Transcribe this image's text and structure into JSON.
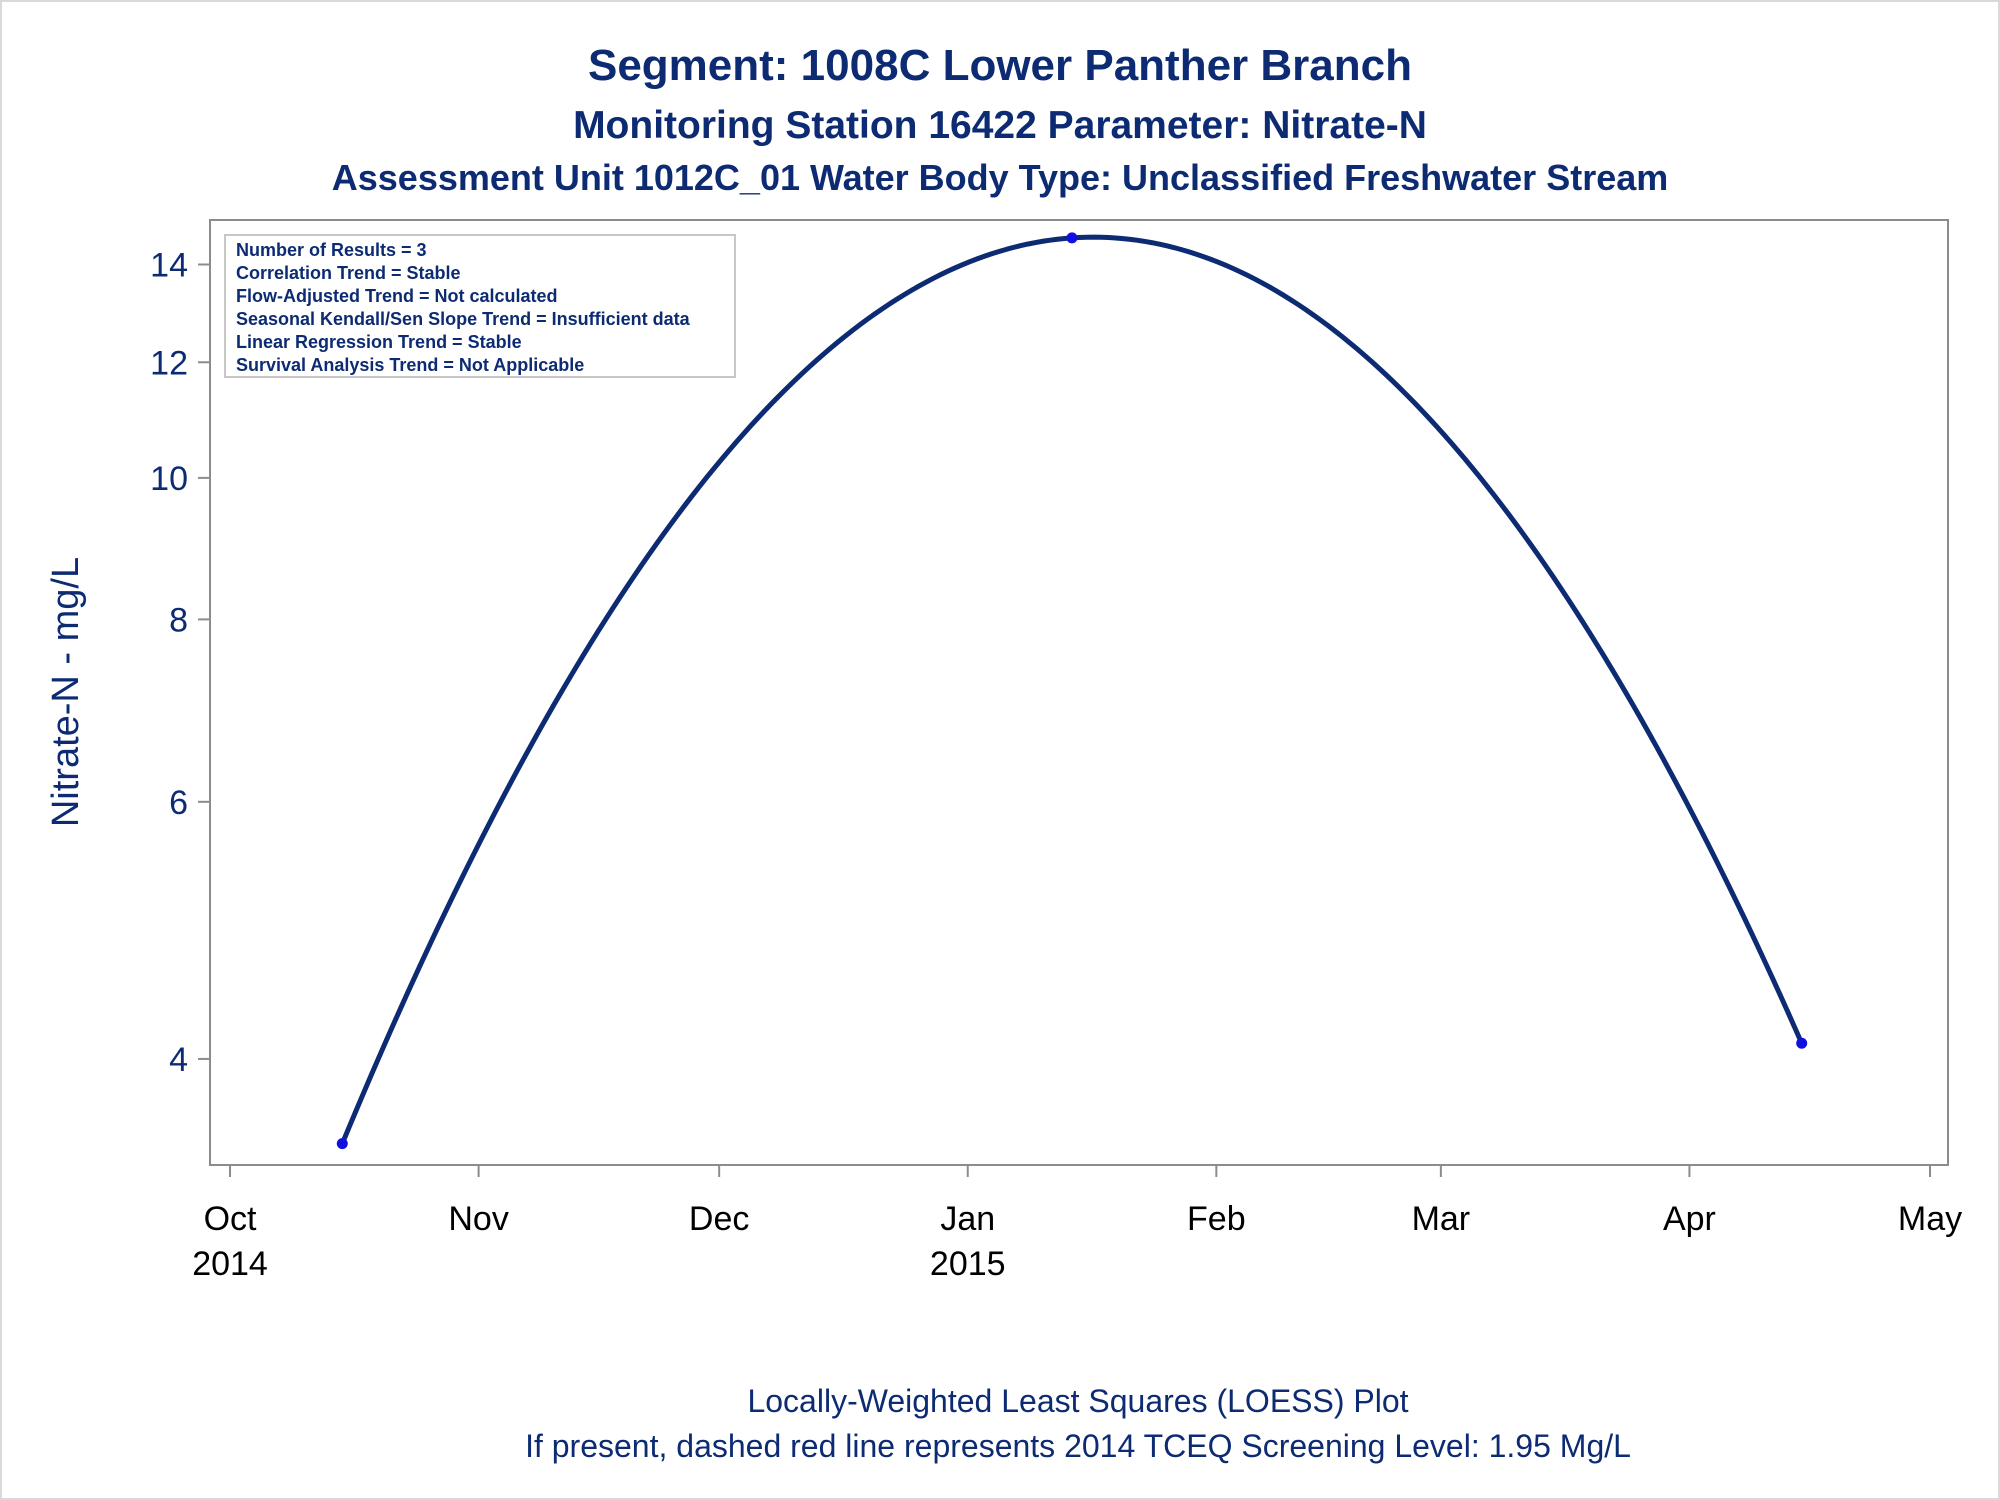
{
  "titles": {
    "line1": "Segment: 1008C  Lower Panther Branch",
    "line2": "Monitoring Station 16422 Parameter: Nitrate-N",
    "line3": "Assessment Unit 1012C_01   Water Body Type: Unclassified Freshwater Stream"
  },
  "legend": [
    "Number of Results = 3",
    "Correlation Trend = Stable",
    "Flow-Adjusted Trend = Not calculated",
    "Seasonal Kendall/Sen Slope Trend = Insufficient data",
    "Linear Regression Trend = Stable",
    "Survival Analysis Trend = Not Applicable"
  ],
  "footnotes": [
    "Locally-Weighted Least Squares (LOESS) Plot",
    "If present, dashed red line represents 2014 TCEQ Screening Level: 1.95 Mg/L"
  ],
  "colors": {
    "title": "#0d2b73",
    "line": "#0d2b73",
    "point": "#1010e0",
    "axis": "#8c8c8c"
  },
  "chart_data": {
    "type": "line",
    "ylabel": "Nitrate-N - mg/L",
    "xlabel": "",
    "y_scale": "log",
    "ylim": [
      3.4,
      14.9
    ],
    "xlim": [
      "2014-09-30",
      "2015-05-01"
    ],
    "x_ticks": [
      {
        "date": "2014-10-01",
        "label": "Oct",
        "sublabel": "2014"
      },
      {
        "date": "2014-11-01",
        "label": "Nov",
        "sublabel": ""
      },
      {
        "date": "2014-12-01",
        "label": "Dec",
        "sublabel": ""
      },
      {
        "date": "2015-01-01",
        "label": "Jan",
        "sublabel": "2015"
      },
      {
        "date": "2015-02-01",
        "label": "Feb",
        "sublabel": ""
      },
      {
        "date": "2015-03-01",
        "label": "Mar",
        "sublabel": ""
      },
      {
        "date": "2015-04-01",
        "label": "Apr",
        "sublabel": ""
      },
      {
        "date": "2015-05-01",
        "label": "May",
        "sublabel": ""
      }
    ],
    "y_ticks": [
      4,
      6,
      8,
      10,
      12,
      14
    ],
    "series": [
      {
        "points": [
          {
            "x": "2014-10-15",
            "y": 3.5
          },
          {
            "x": "2015-01-14",
            "y": 14.6
          },
          {
            "x": "2015-04-15",
            "y": 4.1
          }
        ],
        "smoothing": "LOESS"
      }
    ],
    "grid": false,
    "legend_position": "top-left"
  }
}
